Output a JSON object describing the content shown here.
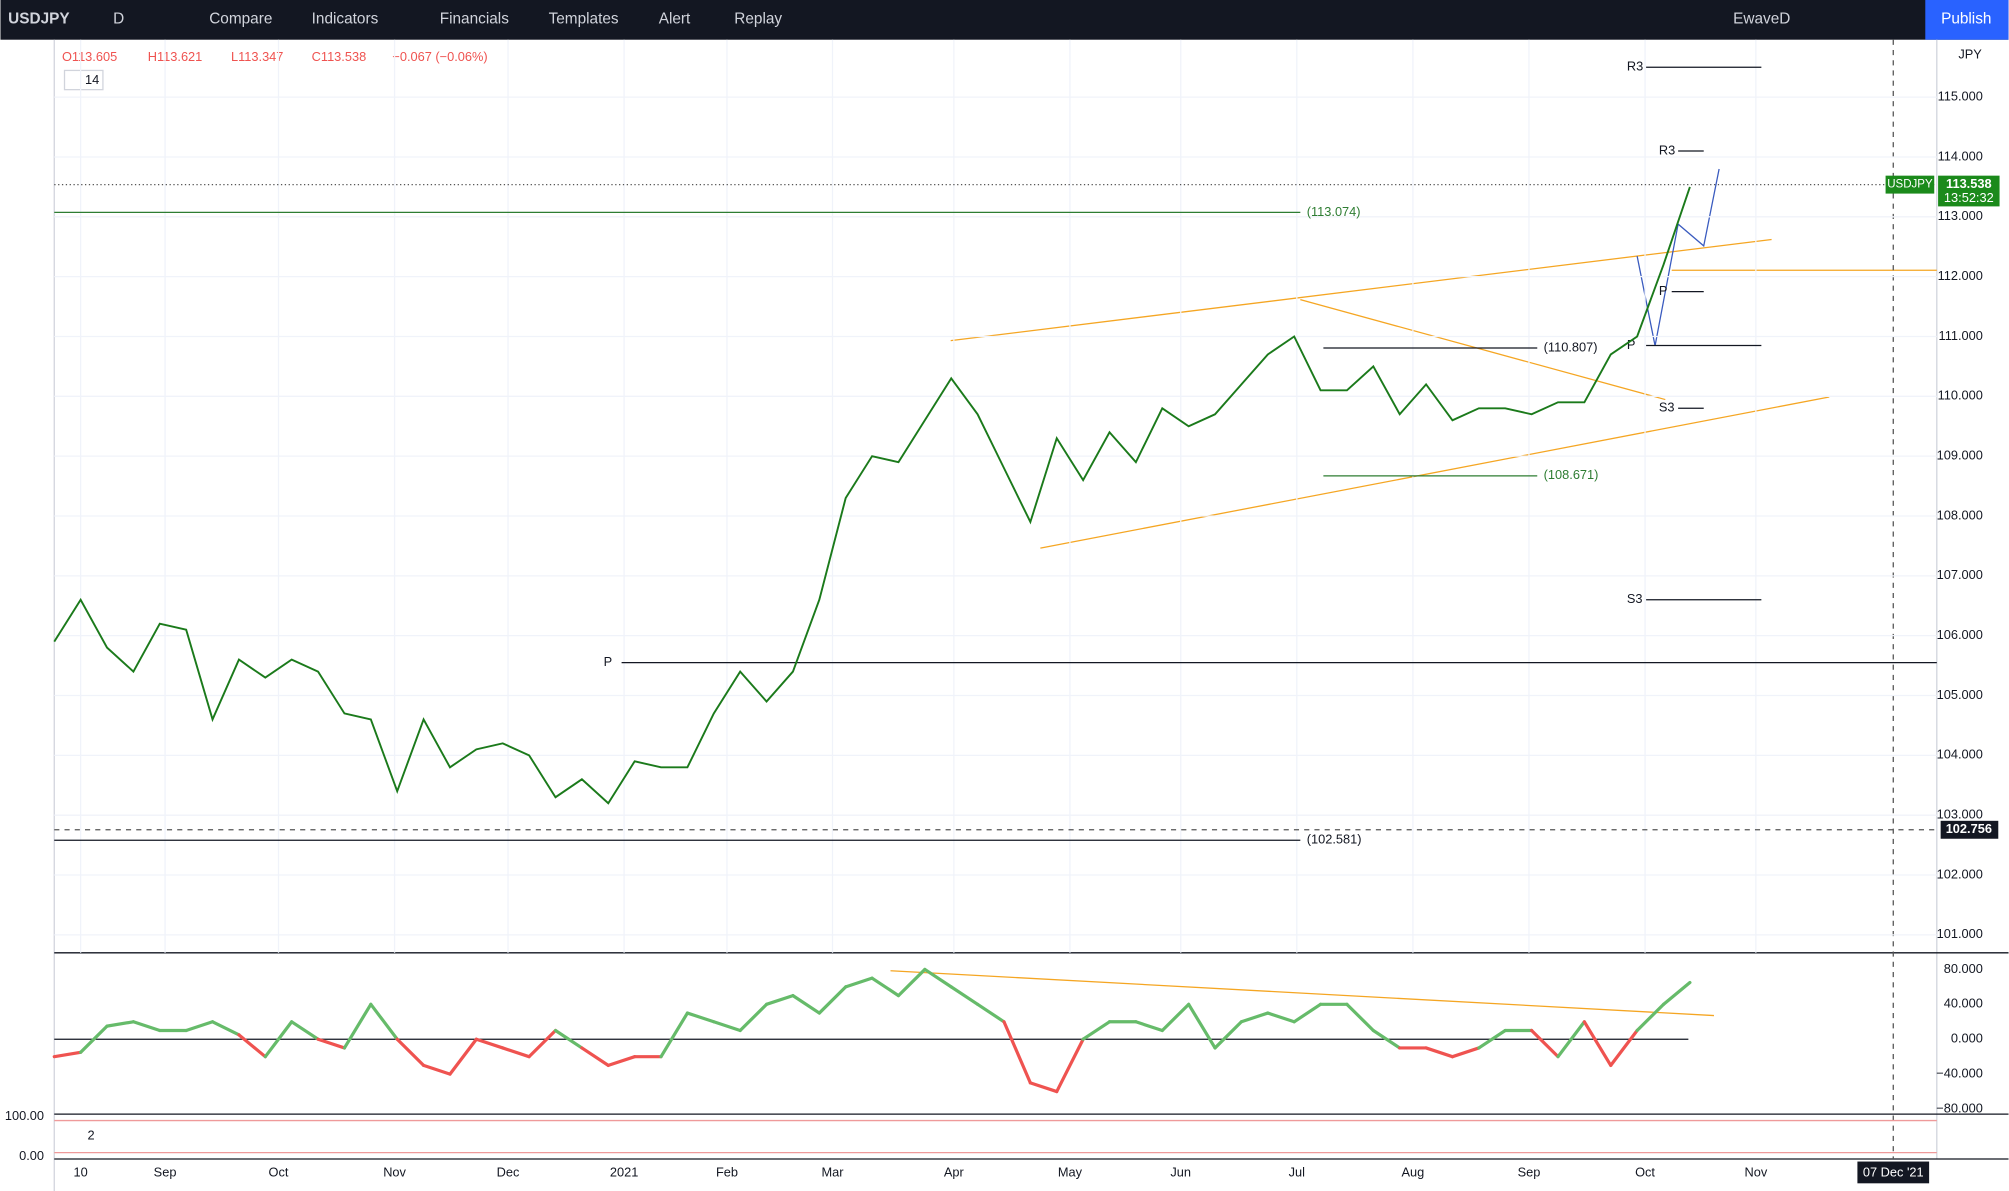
{
  "toolbar": {
    "symbol": "USDJPY",
    "interval": "D",
    "buttons": [
      "Compare",
      "Indicators",
      "Financials",
      "Templates",
      "Alert",
      "Replay"
    ],
    "layout": "EwaveD",
    "publish": "Publish",
    "currency": "JPY"
  },
  "legend": {
    "items": [
      "O113.605",
      "H113.621",
      "L113.347",
      "C113.538",
      "−0.067 (−0.06%)"
    ],
    "indicators": "14"
  },
  "chart_data": {
    "type": "line",
    "series": [
      {
        "name": "USDJPY",
        "color": "#1b7a1b",
        "values": [
          105.9,
          106.6,
          105.8,
          105.4,
          106.2,
          106.1,
          104.6,
          105.6,
          105.3,
          105.6,
          105.4,
          104.7,
          104.6,
          103.4,
          104.6,
          103.8,
          104.1,
          104.2,
          104.0,
          103.3,
          103.6,
          103.2,
          103.9,
          103.8,
          103.8,
          104.7,
          105.4,
          104.9,
          105.4,
          106.6,
          108.3,
          109.0,
          108.9,
          109.6,
          110.3,
          109.7,
          108.8,
          107.9,
          109.3,
          108.6,
          109.4,
          108.9,
          109.8,
          109.5,
          109.7,
          110.2,
          110.7,
          111.0,
          110.1,
          110.1,
          110.5,
          109.7,
          110.2,
          109.6,
          109.8,
          109.8,
          109.7,
          109.9,
          109.9,
          110.7,
          111.0,
          112.2,
          113.5
        ]
      }
    ],
    "ylim": [
      100.7,
      115.96
    ],
    "yticks": [
      {
        "value": 101,
        "label": "101.000"
      },
      {
        "value": 102,
        "label": "102.000"
      },
      {
        "value": 103,
        "label": "103.000"
      },
      {
        "value": 104,
        "label": "104.000"
      },
      {
        "value": 105,
        "label": "105.000"
      },
      {
        "value": 106,
        "label": "106.000"
      },
      {
        "value": 107,
        "label": "107.000"
      },
      {
        "value": 108,
        "label": "108.000"
      },
      {
        "value": 109,
        "label": "109.000"
      },
      {
        "value": 110,
        "label": "110.000"
      },
      {
        "value": 111,
        "label": "111.000"
      },
      {
        "value": 112,
        "label": "112.000"
      },
      {
        "value": 113,
        "label": "113.000"
      },
      {
        "value": 114,
        "label": "114.000"
      },
      {
        "value": 115,
        "label": "115.000"
      }
    ],
    "xticks": [
      {
        "value": 1,
        "label": "10"
      },
      {
        "value": 4.2,
        "label": "Sep"
      },
      {
        "value": 8.5,
        "label": "Oct"
      },
      {
        "value": 12.9,
        "label": "Nov"
      },
      {
        "value": 17.2,
        "label": "Dec"
      },
      {
        "value": 21.6,
        "label": "2021"
      },
      {
        "value": 25.5,
        "label": "Feb"
      },
      {
        "value": 29.5,
        "label": "Mar"
      },
      {
        "value": 34.1,
        "label": "Apr"
      },
      {
        "value": 38.5,
        "label": "May"
      },
      {
        "value": 42.7,
        "label": "Jun"
      },
      {
        "value": 47.1,
        "label": "Jul"
      },
      {
        "value": 51.5,
        "label": "Aug"
      },
      {
        "value": 55.9,
        "label": "Sep"
      },
      {
        "value": 60.3,
        "label": "Oct"
      },
      {
        "value": 64.5,
        "label": "Nov"
      }
    ],
    "levels": [
      {
        "value": 113.074,
        "label": "(113.074)"
      },
      {
        "value": 102.581,
        "label": "(102.581)"
      },
      {
        "value": 110.807,
        "label": "(110.807)"
      },
      {
        "value": 108.671,
        "label": "(108.671)"
      }
    ],
    "pivots": [
      {
        "value": 115.5,
        "label": "R3"
      },
      {
        "value": 105.55,
        "label": "P"
      },
      {
        "value": 106.6,
        "label": "S3"
      },
      {
        "value": 114.1,
        "label": "R3"
      },
      {
        "value": 111.75,
        "label": "P"
      },
      {
        "value": 110.85,
        "label": "P"
      },
      {
        "value": 109.8,
        "label": "S3"
      }
    ],
    "last_price": {
      "value": 113.538,
      "time": "13:52:32"
    },
    "crosshair": {
      "value": 102.756,
      "date": "07 Dec '21"
    }
  },
  "oscillator": {
    "type": "line",
    "ylim": [
      -85.9,
      97.6
    ],
    "yticks": [
      {
        "value": 80,
        "label": "80.000"
      },
      {
        "value": 40,
        "label": "40.000"
      },
      {
        "value": 0,
        "label": "0.000"
      },
      {
        "value": -40,
        "label": "−40.000"
      },
      {
        "value": -80,
        "label": "−80.000"
      }
    ],
    "values": [
      -20,
      -15,
      15,
      20,
      10,
      10,
      20,
      5,
      -20,
      20,
      0,
      -10,
      40,
      0,
      -30,
      -40,
      0,
      -10,
      -20,
      10,
      -10,
      -30,
      -20,
      -20,
      30,
      20,
      10,
      40,
      50,
      30,
      60,
      70,
      50,
      80,
      60,
      40,
      20,
      -50,
      -60,
      0,
      20,
      20,
      10,
      40,
      -10,
      20,
      30,
      20,
      40,
      40,
      10,
      -10,
      -10,
      -20,
      -10,
      10,
      10,
      -20,
      20,
      -30,
      10,
      40,
      65
    ]
  },
  "stochastic": {
    "yticks": [
      {
        "value": 100,
        "label": "100.00"
      },
      {
        "value": 0,
        "label": "0.00"
      }
    ],
    "count": "2"
  }
}
